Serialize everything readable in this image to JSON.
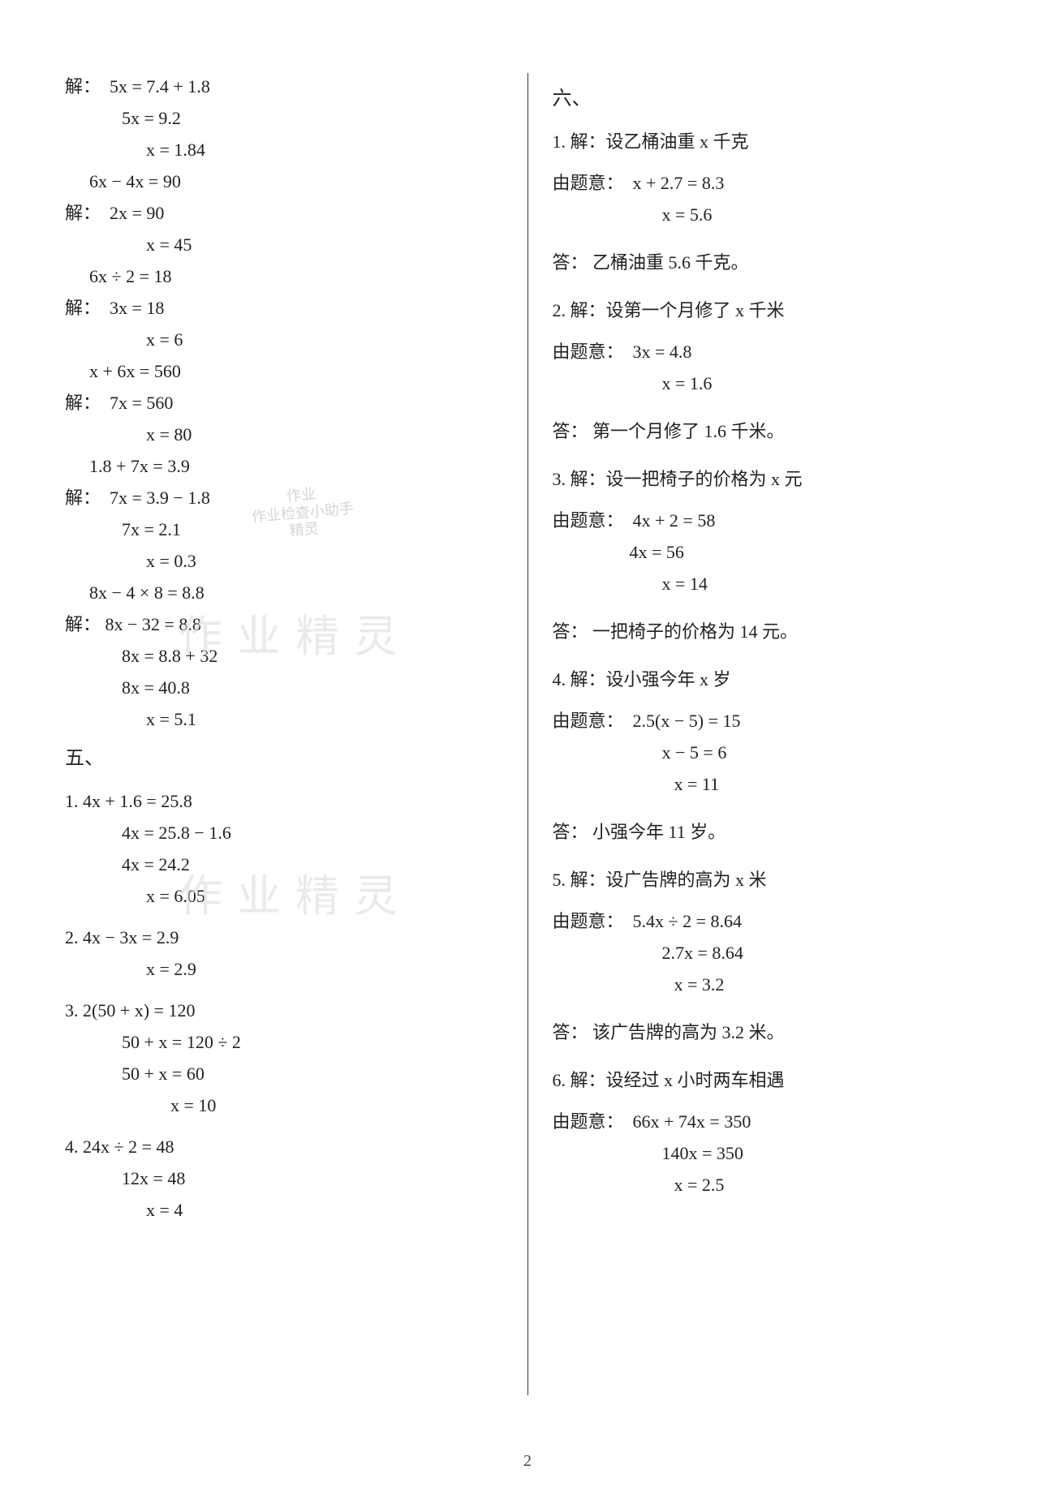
{
  "page_number": "2",
  "watermark_text": "作业精灵",
  "stamp": {
    "l1": "作业",
    "l2": "作业检查小助手",
    "l3": "精灵"
  },
  "left": {
    "jie": "解：",
    "sec5": "五、",
    "l1": "5x = 7.4 + 1.8",
    "l2": "5x = 9.2",
    "l3": "x = 1.84",
    "l4": "6x − 4x = 90",
    "l5": "2x = 90",
    "l6": "x = 45",
    "l7": "6x ÷ 2 = 18",
    "l8": "3x = 18",
    "l9": "x = 6",
    "l10": "x + 6x = 560",
    "l11": "7x = 560",
    "l12": "x = 80",
    "l13": "1.8 + 7x = 3.9",
    "l14": "7x = 3.9 − 1.8",
    "l15": "7x = 2.1",
    "l16": "x = 0.3",
    "l17": "8x − 4 × 8 = 8.8",
    "l18": "8x − 32 = 8.8",
    "l19": "8x = 8.8 + 32",
    "l20": "8x = 40.8",
    "l21": "x = 5.1",
    "p1": "1.",
    "p1a": "4x + 1.6 = 25.8",
    "p1b": "4x = 25.8 − 1.6",
    "p1c": "4x = 24.2",
    "p1d": "x = 6.05",
    "p2": "2.",
    "p2a": "4x − 3x = 2.9",
    "p2b": "x = 2.9",
    "p3": "3.",
    "p3a": "2(50 + x) = 120",
    "p3b": "50 + x = 120 ÷ 2",
    "p3c": "50 + x = 60",
    "p3d": "x = 10",
    "p4": "4.",
    "p4a": "24x ÷ 2 = 48",
    "p4b": "12x = 48",
    "p4c": "x = 4"
  },
  "right": {
    "sec6": "六、",
    "youti": "由题意：",
    "da": "答：",
    "jie": "解：",
    "q1_setup": "1. 解：设乙桶油重 x 千克",
    "q1a": "x + 2.7 = 8.3",
    "q1b": "x = 5.6",
    "q1_ans": "乙桶油重 5.6 千克。",
    "q2_setup": "2. 解：设第一个月修了 x 千米",
    "q2a": "3x = 4.8",
    "q2b": "x = 1.6",
    "q2_ans": "第一个月修了 1.6 千米。",
    "q3_setup": "3. 解：设一把椅子的价格为 x 元",
    "q3a": "4x + 2 = 58",
    "q3b": "4x = 56",
    "q3c": "x = 14",
    "q3_ans": "一把椅子的价格为 14 元。",
    "q4_setup": "4. 解：设小强今年 x 岁",
    "q4a": "2.5(x − 5) = 15",
    "q4b": "x − 5 = 6",
    "q4c": "x = 11",
    "q4_ans": "小强今年 11 岁。",
    "q5_setup": "5. 解：设广告牌的高为 x 米",
    "q5a": "5.4x ÷ 2 = 8.64",
    "q5b": "2.7x = 8.64",
    "q5c": "x = 3.2",
    "q5_ans": "该广告牌的高为 3.2 米。",
    "q6_setup": "6. 解：设经过 x 小时两车相遇",
    "q6a": "66x + 74x = 350",
    "q6b": "140x = 350",
    "q6c": "x = 2.5"
  }
}
